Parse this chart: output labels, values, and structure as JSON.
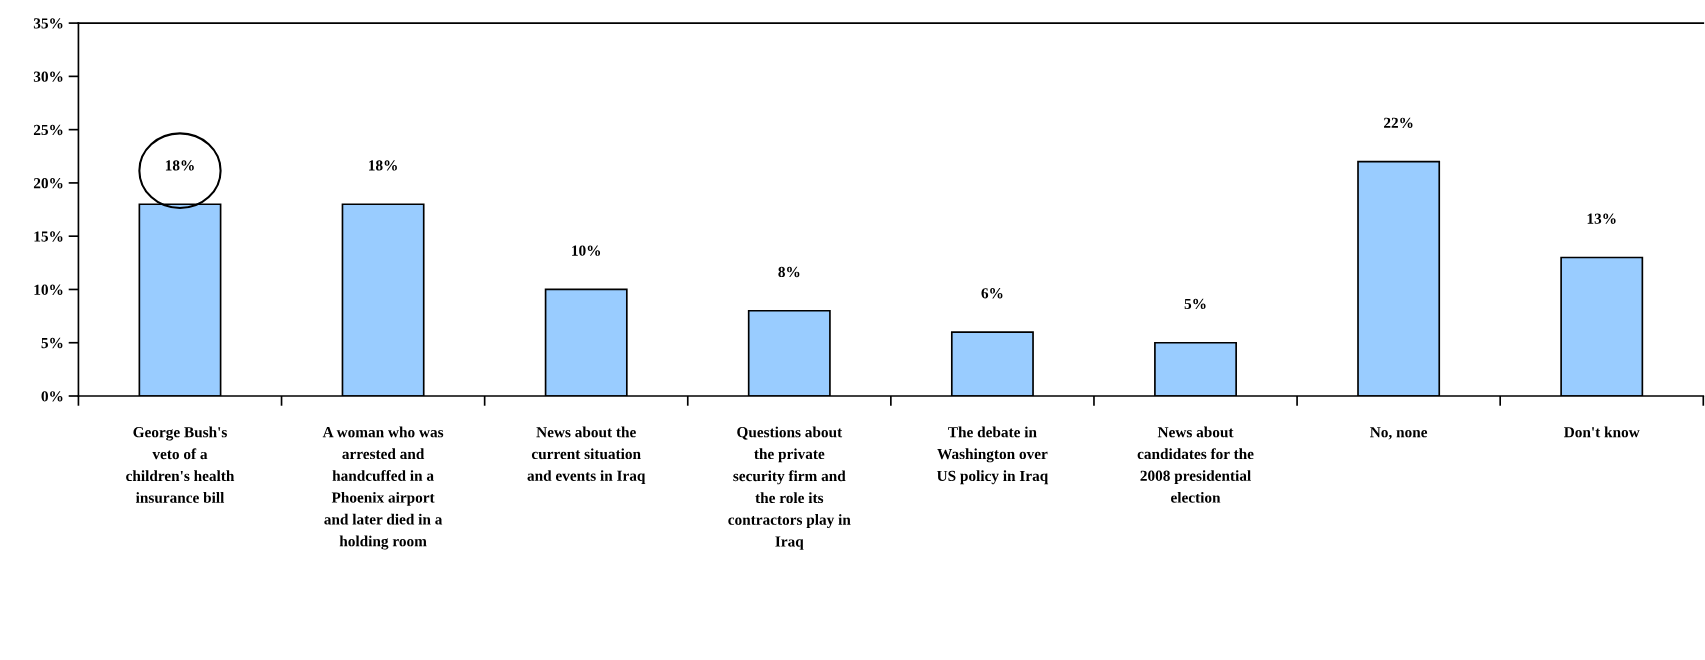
{
  "chart_data": {
    "type": "bar",
    "categories": [
      "George Bush's\nveto of a\nchildren's health\ninsurance bill",
      "A woman who was\narrested and\nhandcuffed in a\nPhoenix airport\nand later died in a\nholding room",
      "News about the\ncurrent situation\nand events in Iraq",
      "Questions about\nthe private\nsecurity firm and\nthe role its\ncontractors play in\nIraq",
      "The debate in\nWashington over\nUS policy in Iraq",
      "News about\ncandidates for the\n2008 presidential\nelection",
      "No, none",
      "Don't know"
    ],
    "values": [
      18,
      18,
      10,
      8,
      6,
      5,
      22,
      13
    ],
    "value_labels": [
      "18%",
      "18%",
      "10%",
      "8%",
      "6%",
      "5%",
      "22%",
      "13%"
    ],
    "color": "#99ccff",
    "ylim": [
      0,
      35
    ],
    "yticks": [
      {
        "value": 0,
        "label": "0%"
      },
      {
        "value": 5,
        "label": "5%"
      },
      {
        "value": 10,
        "label": "10%"
      },
      {
        "value": 15,
        "label": "15%"
      },
      {
        "value": 20,
        "label": "20%"
      },
      {
        "value": 25,
        "label": "25%"
      },
      {
        "value": 30,
        "label": "30%"
      },
      {
        "value": 35,
        "label": "35%"
      }
    ],
    "grid": false,
    "legend": false
  }
}
